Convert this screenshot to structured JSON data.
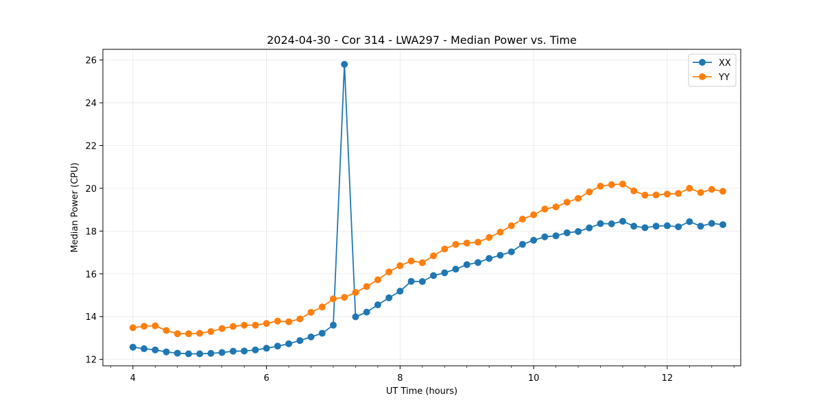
{
  "chart_data": {
    "type": "line",
    "title": "2024-04-30 - Cor 314 - LWA297 - Median Power vs. Time",
    "xlabel": "UT Time (hours)",
    "ylabel": "Median Power (CPU)",
    "xlim": [
      3.55,
      13.1
    ],
    "ylim": [
      11.7,
      26.5
    ],
    "xticks": [
      4,
      6,
      8,
      10,
      12
    ],
    "yticks": [
      12,
      14,
      16,
      18,
      20,
      22,
      24,
      26
    ],
    "xminor_step": 0.333333,
    "grid": true,
    "legend_position": "top-right",
    "x": [
      4.0,
      4.1667,
      4.3333,
      4.5,
      4.6667,
      4.8333,
      5.0,
      5.1667,
      5.3333,
      5.5,
      5.6667,
      5.8333,
      6.0,
      6.1667,
      6.3333,
      6.5,
      6.6667,
      6.8333,
      7.0,
      7.1667,
      7.3333,
      7.5,
      7.6667,
      7.8333,
      8.0,
      8.1667,
      8.3333,
      8.5,
      8.6667,
      8.8333,
      9.0,
      9.1667,
      9.3333,
      9.5,
      9.6667,
      9.8333,
      10.0,
      10.1667,
      10.3333,
      10.5,
      10.6667,
      10.8333,
      11.0,
      11.1667,
      11.3333,
      11.5,
      11.6667,
      11.8333,
      12.0,
      12.1667,
      12.3333,
      12.5,
      12.6667,
      12.8333
    ],
    "series": [
      {
        "name": "XX",
        "color": "#1f77b4",
        "values": [
          12.57,
          12.5,
          12.44,
          12.35,
          12.29,
          12.26,
          12.26,
          12.28,
          12.32,
          12.38,
          12.39,
          12.44,
          12.52,
          12.62,
          12.73,
          12.88,
          13.05,
          13.22,
          13.6,
          25.8,
          13.99,
          14.21,
          14.55,
          14.88,
          15.19,
          15.65,
          15.64,
          15.92,
          16.05,
          16.22,
          16.43,
          16.53,
          16.72,
          16.87,
          17.03,
          17.38,
          17.57,
          17.73,
          17.78,
          17.92,
          17.98,
          18.15,
          18.35,
          18.34,
          18.46,
          18.23,
          18.16,
          18.23,
          18.25,
          18.2,
          18.44,
          18.23,
          18.36,
          18.3
        ]
      },
      {
        "name": "YY",
        "color": "#ff7f0e",
        "values": [
          13.48,
          13.55,
          13.57,
          13.35,
          13.2,
          13.2,
          13.22,
          13.3,
          13.44,
          13.54,
          13.6,
          13.6,
          13.68,
          13.79,
          13.76,
          13.89,
          14.2,
          14.45,
          14.83,
          14.9,
          15.13,
          15.41,
          15.72,
          16.09,
          16.38,
          16.6,
          16.52,
          16.84,
          17.16,
          17.38,
          17.44,
          17.48,
          17.7,
          17.95,
          18.25,
          18.56,
          18.76,
          19.03,
          19.13,
          19.35,
          19.53,
          19.83,
          20.1,
          20.17,
          20.2,
          19.88,
          19.68,
          19.69,
          19.73,
          19.76,
          20.0,
          19.8,
          19.95,
          19.86
        ]
      }
    ]
  }
}
